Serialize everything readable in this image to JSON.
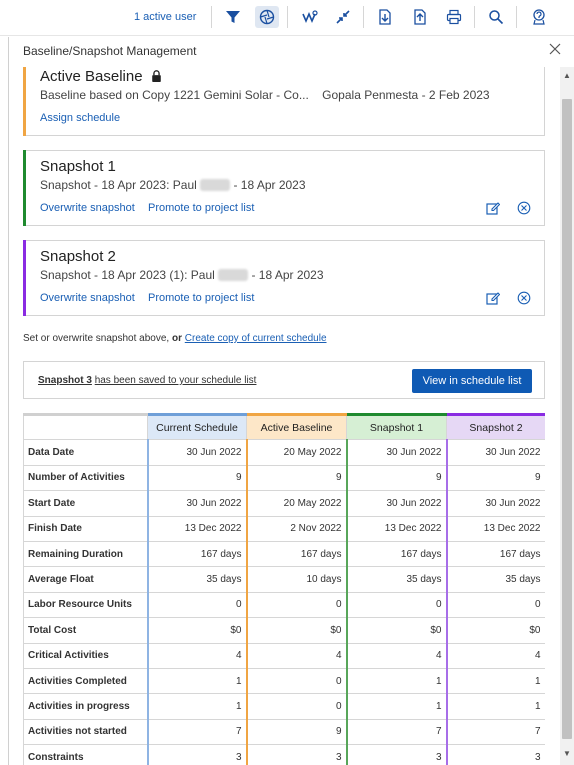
{
  "toolbar": {
    "active_users_label": "1 active user",
    "icons": [
      "filter-icon",
      "aperture-icon",
      "connect-icon",
      "collapse-icon",
      "export-icon",
      "import-icon",
      "print-icon",
      "search-icon",
      "help-icon"
    ]
  },
  "panel": {
    "title": "Baseline/Snapshot Management",
    "close_label": "×"
  },
  "cards": {
    "active_baseline": {
      "title": "Active Baseline",
      "subtitle": "Baseline based on Copy 1221 Gemini Solar - Co...",
      "owner_date": "Gopala Penmesta - 2 Feb 2023",
      "link_assign": "Assign schedule",
      "color": "#f0a543"
    },
    "snapshot1": {
      "title": "Snapshot 1",
      "subtitle_prefix": "Snapshot - 18 Apr 2023: Paul",
      "subtitle_suffix": "- 18 Apr 2023",
      "link_overwrite": "Overwrite snapshot",
      "link_promote": "Promote to project list",
      "color": "#1f8a2f"
    },
    "snapshot2": {
      "title": "Snapshot 2",
      "subtitle_prefix": "Snapshot - 18 Apr 2023 (1): Paul",
      "subtitle_suffix": "- 18 Apr 2023",
      "link_overwrite": "Overwrite snapshot",
      "link_promote": "Promote to project list",
      "color": "#8a2be2"
    }
  },
  "note": {
    "prefix": "Set or overwrite snapshot above,",
    "bold_or": "or",
    "link": "Create copy of current schedule"
  },
  "saved": {
    "snapshot_name": "Snapshot 3",
    "message": "has been saved to your schedule list",
    "button": "View in schedule list"
  },
  "table": {
    "headers": [
      "Current Schedule",
      "Active Baseline",
      "Snapshot 1",
      "Snapshot 2"
    ],
    "rows": [
      {
        "label": "Data Date",
        "values": [
          "30 Jun 2022",
          "20 May 2022",
          "30 Jun 2022",
          "30 Jun 2022"
        ]
      },
      {
        "label": "Number of Activities",
        "values": [
          "9",
          "9",
          "9",
          "9"
        ]
      },
      {
        "label": "Start Date",
        "values": [
          "30 Jun 2022",
          "20 May 2022",
          "30 Jun 2022",
          "30 Jun 2022"
        ]
      },
      {
        "label": "Finish Date",
        "values": [
          "13 Dec 2022",
          "2 Nov 2022",
          "13 Dec 2022",
          "13 Dec 2022"
        ]
      },
      {
        "label": "Remaining Duration",
        "values": [
          "167 days",
          "167 days",
          "167 days",
          "167 days"
        ]
      },
      {
        "label": "Average Float",
        "values": [
          "35 days",
          "10 days",
          "35 days",
          "35 days"
        ]
      },
      {
        "label": "Labor Resource Units",
        "values": [
          "0",
          "0",
          "0",
          "0"
        ]
      },
      {
        "label": "Total Cost",
        "values": [
          "$0",
          "$0",
          "$0",
          "$0"
        ]
      },
      {
        "label": "Critical Activities",
        "values": [
          "4",
          "4",
          "4",
          "4"
        ]
      },
      {
        "label": "Activities Completed",
        "values": [
          "1",
          "0",
          "1",
          "1"
        ]
      },
      {
        "label": "Activities in progress",
        "values": [
          "1",
          "0",
          "1",
          "1"
        ]
      },
      {
        "label": "Activities not started",
        "values": [
          "7",
          "9",
          "7",
          "7"
        ]
      },
      {
        "label": "Constraints",
        "values": [
          "3",
          "3",
          "3",
          "3"
        ]
      }
    ]
  }
}
